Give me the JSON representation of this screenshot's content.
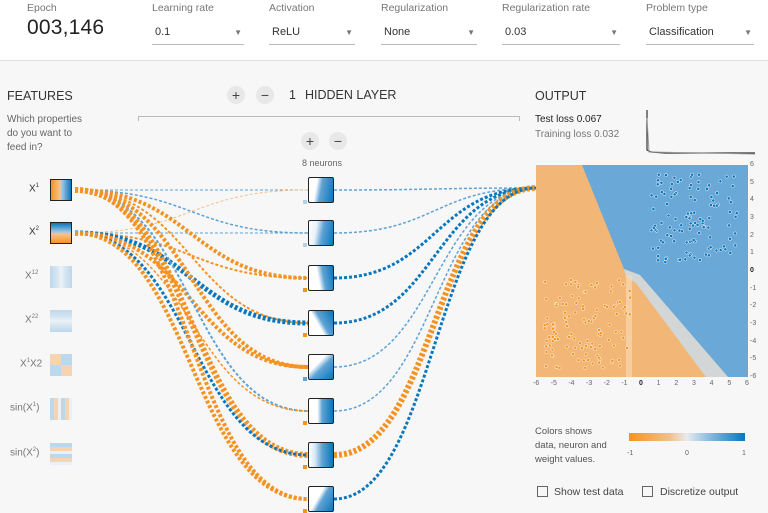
{
  "controls": {
    "epoch_label": "Epoch",
    "epoch_value": "003,146",
    "learning_rate_label": "Learning rate",
    "learning_rate_value": "0.1",
    "activation_label": "Activation",
    "activation_value": "ReLU",
    "regularization_label": "Regularization",
    "regularization_value": "None",
    "reg_rate_label": "Regularization rate",
    "reg_rate_value": "0.03",
    "problem_type_label": "Problem type",
    "problem_type_value": "Classification"
  },
  "features": {
    "title": "FEATURES",
    "question": [
      "Which properties",
      "do you want to",
      "feed in?"
    ],
    "items": [
      {
        "base": "X",
        "sup": "1",
        "tail": "",
        "active": true
      },
      {
        "base": "X",
        "sup": "2",
        "tail": "",
        "active": true
      },
      {
        "base": "X",
        "sup": "12",
        "tail": "",
        "active": false
      },
      {
        "base": "X",
        "sup": "22",
        "tail": "",
        "active": false
      },
      {
        "base": "X",
        "sup": "1",
        "tail": "X2",
        "active": false
      },
      {
        "base": "sin(X",
        "sup": "1",
        "tail": ")",
        "active": false
      },
      {
        "base": "sin(X",
        "sup": "2",
        "tail": ")",
        "active": false
      }
    ]
  },
  "hidden": {
    "count": "1",
    "label": "HIDDEN LAYER",
    "neurons_label": "8 neurons",
    "plus": "+",
    "minus": "−"
  },
  "output": {
    "title": "OUTPUT",
    "test_loss_label": "Test loss",
    "test_loss_value": "0.067",
    "training_loss_label": "Training loss",
    "training_loss_value": "0.032",
    "x_ticks": [
      "-6",
      "-5",
      "-4",
      "-3",
      "-2",
      "-1",
      "0",
      "1",
      "2",
      "3",
      "4",
      "5",
      "6"
    ],
    "y_ticks": [
      "6",
      "5",
      "4",
      "3",
      "2",
      "1",
      "0",
      "-1",
      "-2",
      "-3",
      "-4",
      "-5",
      "-6"
    ],
    "legend_text": [
      "Colors shows",
      "data, neuron and",
      "weight values."
    ],
    "legend_ticks": [
      "-1",
      "0",
      "1"
    ],
    "show_test_data": "Show test data",
    "discretize_output": "Discretize output"
  },
  "colors": {
    "orange": "#f59322",
    "blue": "#0877bd",
    "light_orange": "#f4c088",
    "light_blue": "#5fa2d3"
  }
}
